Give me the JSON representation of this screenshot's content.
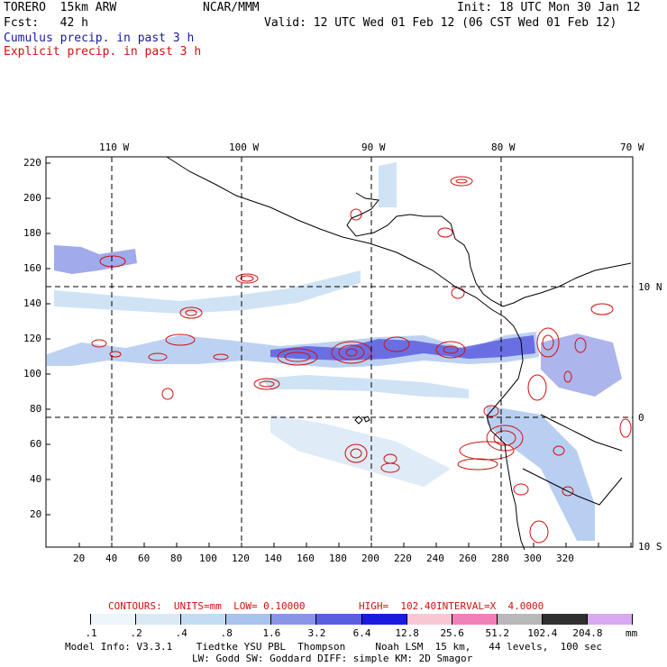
{
  "header": {
    "model": "TORERO  15km ARW",
    "org": "NCAR/MMM",
    "init": "Init: 18 UTC Mon 30 Jan 12",
    "fcst": "Fcst:   42 h",
    "valid": "Valid: 12 UTC Wed 01 Feb 12 (06 CST Wed 01 Feb 12)",
    "legend_cumulus": "Cumulus precip. in past 3 h",
    "legend_explicit": "Explicit precip. in past 3 h"
  },
  "map": {
    "lon_labels": [
      "110 W",
      "100 W",
      "90 W",
      "80 W",
      "70 W"
    ],
    "lat_labels": [
      "10 N",
      "0",
      "10 S"
    ],
    "y_ticks": [
      "220",
      "200",
      "180",
      "160",
      "140",
      "120",
      "100",
      "80",
      "60",
      "40",
      "20"
    ],
    "x_ticks": [
      "20",
      "40",
      "60",
      "80",
      "100",
      "120",
      "140",
      "160",
      "180",
      "200",
      "220",
      "240",
      "260",
      "280",
      "300",
      "320"
    ]
  },
  "contours_line": {
    "label": "CONTOURS:  UNITS=mm  LOW= 0.10000",
    "high": "HIGH=  102.40",
    "interval": "INTERVAL=X  4.0000"
  },
  "colorbar": {
    "labels": [
      ".1",
      ".2",
      ".4",
      ".8",
      "1.6",
      "3.2",
      "6.4",
      "12.8",
      "25.6",
      "51.2",
      "102.4",
      "204.8"
    ],
    "units": "mm",
    "colors": [
      "#ffffff",
      "#eef5fb",
      "#dbe9f5",
      "#c3dcf3",
      "#a7c3ee",
      "#8a95e6",
      "#5a5ee0",
      "#1a1ae0",
      "#f5c8d4",
      "#f080b8",
      "#b8b8b8",
      "#303030",
      "#d8a8f0"
    ]
  },
  "model_info": {
    "line1": "Model Info: V3.3.1    Tiedtke YSU PBL  Thompson     Noah LSM  15 km,   44 levels,  100 sec",
    "line2": "LW: Godd SW: Goddard DIFF: simple KM: 2D Smagor"
  }
}
